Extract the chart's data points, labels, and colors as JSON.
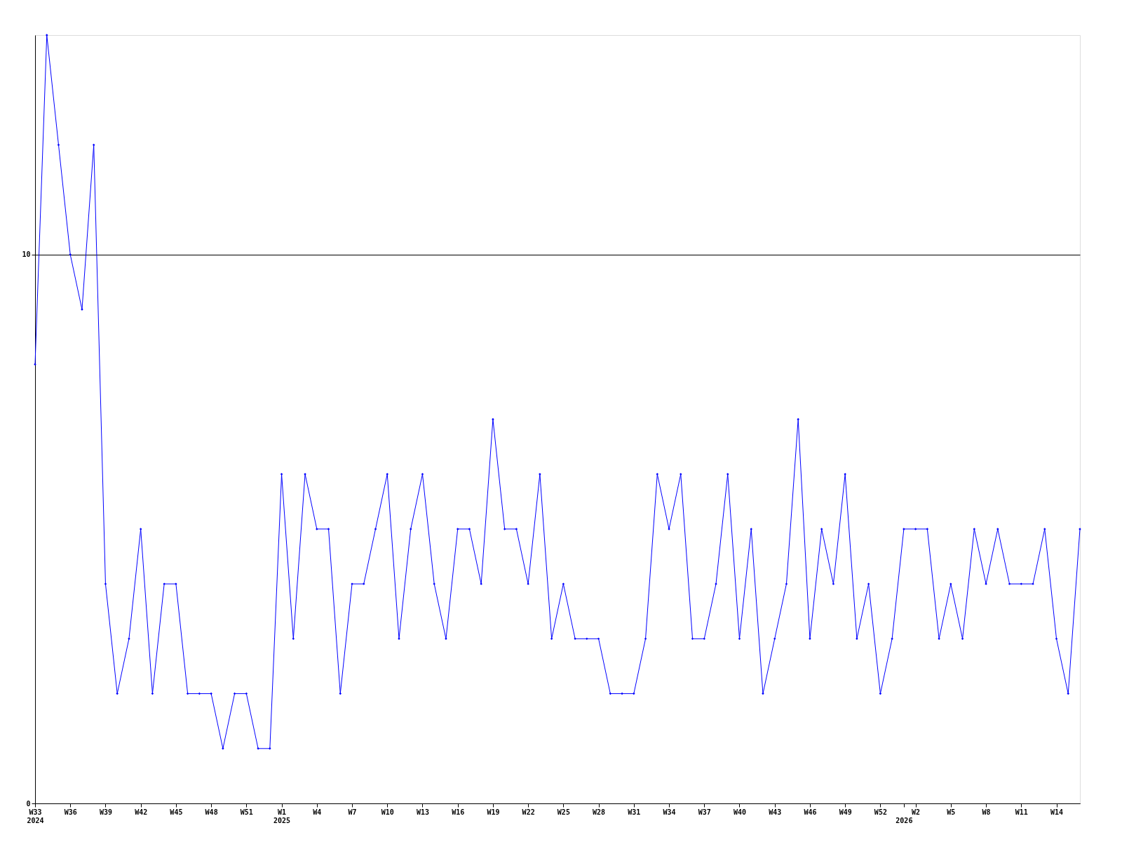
{
  "chart_data": {
    "type": "line",
    "categories": [
      "W33\n2024",
      null,
      null,
      "W36",
      null,
      null,
      "W39",
      null,
      null,
      "W42",
      null,
      null,
      "W45",
      null,
      null,
      "W48",
      null,
      null,
      "W51",
      null,
      null,
      "W1\n2025",
      null,
      null,
      "W4",
      null,
      null,
      "W7",
      null,
      null,
      "W10",
      null,
      null,
      "W13",
      null,
      null,
      "W16",
      null,
      null,
      "W19",
      null,
      null,
      "W22",
      null,
      null,
      "W25",
      null,
      null,
      "W28",
      null,
      null,
      "W31",
      null,
      null,
      "W34",
      null,
      null,
      "W37",
      null,
      null,
      "W40",
      null,
      null,
      "W43",
      null,
      null,
      "W46",
      null,
      null,
      "W49",
      null,
      null,
      "W52",
      null,
      "\n2026",
      "W2",
      null,
      null,
      "W5",
      null,
      null,
      "W8",
      null,
      null,
      "W11",
      null,
      null,
      "W14",
      null,
      null
    ],
    "series": [
      {
        "color": "#0000ff",
        "values": [
          8,
          14,
          12,
          10,
          9,
          12,
          4,
          2,
          3,
          5,
          2,
          4,
          4,
          2,
          2,
          2,
          1,
          2,
          2,
          1,
          1,
          6,
          3,
          6,
          5,
          5,
          2,
          4,
          4,
          5,
          6,
          3,
          5,
          6,
          4,
          3,
          5,
          5,
          4,
          7,
          5,
          5,
          4,
          6,
          3,
          4,
          3,
          3,
          3,
          2,
          2,
          2,
          3,
          6,
          5,
          6,
          3,
          3,
          4,
          6,
          3,
          5,
          2,
          3,
          4,
          7,
          3,
          5,
          4,
          6,
          3,
          4,
          2,
          3,
          5,
          5,
          5,
          3,
          4,
          3,
          5,
          4,
          5,
          4,
          4,
          4,
          5,
          3,
          2,
          5
        ]
      }
    ],
    "ylim": [
      0,
      14
    ],
    "yticks": [
      0,
      10
    ],
    "grid": "y",
    "marker": "diamond",
    "line_style": "solid"
  }
}
